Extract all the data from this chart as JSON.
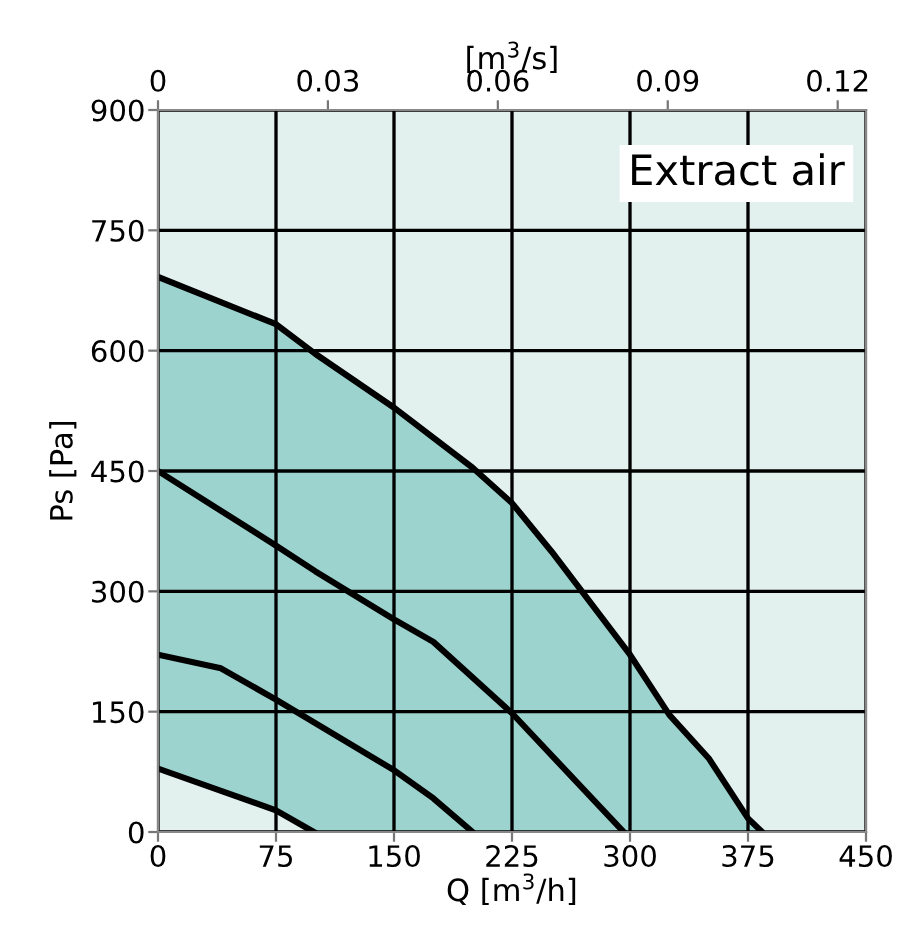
{
  "chart_data": {
    "type": "area",
    "xlabel": "Q [m$^{3}$/h]",
    "ylabel": "Ps [Pa]",
    "x2label": "[m$^{3}$/s]",
    "xlim": [
      0,
      450
    ],
    "xticks": [
      0,
      75,
      150,
      225,
      300,
      375,
      450
    ],
    "ylim": [
      0,
      900
    ],
    "yticks": [
      0,
      150,
      300,
      450,
      600,
      750,
      900
    ],
    "x2lim": [
      0,
      0.125
    ],
    "x2ticks": [
      0,
      0.03,
      0.06,
      0.09,
      0.12
    ],
    "grid": true,
    "annotations": [
      "Extract air"
    ],
    "series": [
      {
        "color": "#9dd3ce",
        "x": [
          0,
          75,
          100,
          150,
          200,
          225,
          250,
          300,
          325,
          350,
          375,
          384
        ],
        "values": [
          692,
          633,
          596,
          529,
          454,
          410,
          350,
          221,
          146,
          92,
          17,
          0
        ]
      },
      {
        "type": "line",
        "color": "#000000",
        "x": [
          0,
          75,
          100,
          150,
          175,
          225,
          296
        ],
        "values": [
          450,
          357,
          325,
          265,
          237,
          148,
          0
        ]
      },
      {
        "type": "line",
        "color": "#000000",
        "x": [
          0,
          40,
          75,
          150,
          175,
          200
        ],
        "values": [
          221,
          204,
          165,
          77,
          42,
          0
        ]
      },
      {
        "color": "#e3f1ee",
        "x": [
          0,
          75,
          99
        ],
        "values": [
          79,
          27,
          0
        ]
      }
    ]
  }
}
